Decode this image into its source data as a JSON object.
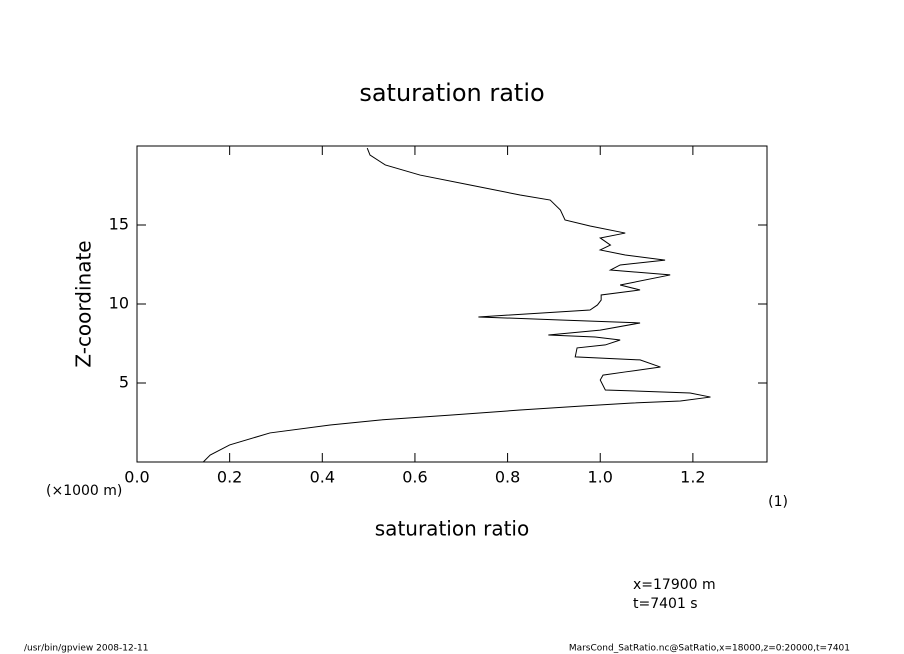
{
  "chart_data": {
    "type": "line",
    "title": "saturation ratio",
    "x_label": "saturation ratio",
    "y_label": "Z-coordinate",
    "y_unit": "(×1000 m)",
    "x_unit": "(1)",
    "annotations": [
      "x=17900 m",
      "t=7401 s"
    ],
    "footer_left": "/usr/bin/gpview  2008-12-11",
    "footer_right": "MarsCond_SatRatio.nc@SatRatio,x=18000,z=0:20000,t=7401",
    "xlim": [
      0,
      1.36
    ],
    "ylim": [
      0,
      20
    ],
    "xticks": [
      {
        "value": 0,
        "label": "0.0"
      },
      0.2,
      0.4,
      0.6,
      0.8,
      {
        "value": 1,
        "label": "1.0"
      },
      1.2
    ],
    "yticks": [
      5,
      10,
      15
    ],
    "x": [
      0.143,
      0.158,
      0.2,
      0.287,
      0.417,
      0.525,
      0.676,
      0.827,
      0.957,
      1.065,
      1.173,
      1.238,
      1.194,
      1.011,
      1.0,
      1.006,
      1.054,
      1.13,
      1.086,
      0.946,
      0.95,
      1.011,
      1.043,
      0.989,
      0.888,
      1.0,
      1.086,
      0.914,
      0.737,
      0.978,
      0.994,
      1.002,
      1.002,
      1.086,
      1.043,
      1.151,
      1.022,
      1.043,
      1.14,
      1.054,
      1.0,
      1.022,
      1.0,
      1.054,
      0.978,
      0.924,
      0.914,
      0.892,
      0.827,
      0.719,
      0.611,
      0.536,
      0.503,
      0.497
    ],
    "series": [
      {
        "color": "#000000",
        "values": [
          0,
          0.44,
          1.08,
          1.84,
          2.34,
          2.66,
          2.97,
          3.29,
          3.54,
          3.73,
          3.86,
          4.11,
          4.37,
          4.56,
          5.19,
          5.5,
          5.7,
          6.01,
          6.46,
          6.65,
          7.22,
          7.41,
          7.72,
          7.91,
          8.04,
          8.35,
          8.8,
          8.99,
          9.18,
          9.62,
          9.94,
          10.25,
          10.57,
          10.89,
          11.2,
          11.84,
          12.15,
          12.47,
          12.78,
          13.1,
          13.42,
          13.73,
          14.18,
          14.49,
          14.94,
          15.32,
          15.95,
          16.58,
          16.9,
          17.53,
          18.16,
          18.8,
          19.43,
          19.87
        ]
      }
    ]
  }
}
